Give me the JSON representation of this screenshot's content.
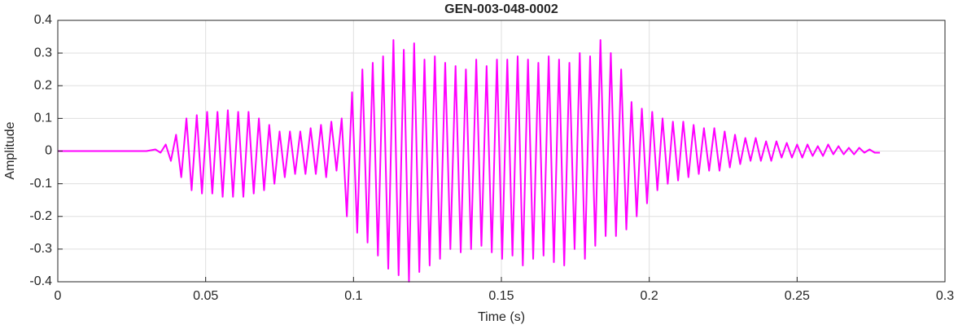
{
  "chart_data": {
    "type": "line",
    "title": "GEN-003-048-0002",
    "xlabel": "Time (s)",
    "ylabel": "Amplitude",
    "color": "#ff00ff",
    "grid": true,
    "xlim": [
      0,
      0.3
    ],
    "xticks": [
      0,
      0.05,
      0.1,
      0.15,
      0.2,
      0.25,
      0.3
    ],
    "ylim": [
      -0.4,
      0.4
    ],
    "yticks": [
      -0.4,
      -0.3,
      -0.2,
      -0.1,
      0,
      0.1,
      0.2,
      0.3,
      0.4
    ],
    "x": [
      0,
      0.03,
      0.033,
      0.03475,
      0.0365,
      0.03825,
      0.04,
      0.04175,
      0.0435,
      0.04525,
      0.047,
      0.04875,
      0.0505,
      0.05225,
      0.054,
      0.05575,
      0.0575,
      0.05925,
      0.061,
      0.06275,
      0.0645,
      0.06625,
      0.068,
      0.06975,
      0.0715,
      0.07325,
      0.075,
      0.07675,
      0.0785,
      0.08025,
      0.082,
      0.08375,
      0.0855,
      0.08725,
      0.089,
      0.09075,
      0.0925,
      0.09425,
      0.096,
      0.09775,
      0.0995,
      0.10125,
      0.103,
      0.10475,
      0.1065,
      0.10825,
      0.11,
      0.11175,
      0.1135,
      0.11525,
      0.117,
      0.11875,
      0.1205,
      0.12225,
      0.124,
      0.12575,
      0.1275,
      0.12925,
      0.131,
      0.13275,
      0.1345,
      0.13625,
      0.138,
      0.13975,
      0.1415,
      0.14325,
      0.145,
      0.14675,
      0.1485,
      0.15025,
      0.152,
      0.15375,
      0.1555,
      0.15725,
      0.159,
      0.16075,
      0.1625,
      0.16425,
      0.166,
      0.16775,
      0.1695,
      0.17125,
      0.173,
      0.17475,
      0.1765,
      0.17825,
      0.18,
      0.18175,
      0.1835,
      0.18525,
      0.187,
      0.18875,
      0.1905,
      0.19225,
      0.194,
      0.19575,
      0.1975,
      0.19925,
      0.201,
      0.20275,
      0.2045,
      0.20625,
      0.208,
      0.20975,
      0.2115,
      0.21325,
      0.215,
      0.21675,
      0.2185,
      0.22025,
      0.222,
      0.22375,
      0.2255,
      0.22725,
      0.229,
      0.23075,
      0.2325,
      0.23425,
      0.236,
      0.23775,
      0.2395,
      0.24125,
      0.243,
      0.24475,
      0.2465,
      0.24825,
      0.25,
      0.25175,
      0.2535,
      0.25525,
      0.257,
      0.25875,
      0.2605,
      0.26225,
      0.264,
      0.26575,
      0.2675,
      0.26925,
      0.271,
      0.27275,
      0.2745,
      0.27625,
      0.278
    ],
    "values": [
      0,
      0,
      0.005,
      -0.005,
      0.02,
      -0.03,
      0.05,
      -0.08,
      0.1,
      -0.12,
      0.11,
      -0.13,
      0.12,
      -0.13,
      0.12,
      -0.14,
      0.125,
      -0.14,
      0.12,
      -0.14,
      0.12,
      -0.13,
      0.1,
      -0.12,
      0.08,
      -0.1,
      0.06,
      -0.08,
      0.06,
      -0.07,
      0.06,
      -0.07,
      0.07,
      -0.07,
      0.08,
      -0.08,
      0.09,
      -0.06,
      0.1,
      -0.2,
      0.18,
      -0.25,
      0.25,
      -0.28,
      0.27,
      -0.32,
      0.29,
      -0.36,
      0.34,
      -0.38,
      0.31,
      -0.4,
      0.33,
      -0.37,
      0.28,
      -0.35,
      0.29,
      -0.33,
      0.27,
      -0.3,
      0.26,
      -0.31,
      0.25,
      -0.3,
      0.28,
      -0.29,
      0.26,
      -0.31,
      0.28,
      -0.33,
      0.28,
      -0.32,
      0.29,
      -0.35,
      0.28,
      -0.33,
      0.27,
      -0.32,
      0.29,
      -0.34,
      0.28,
      -0.35,
      0.27,
      -0.3,
      0.3,
      -0.33,
      0.29,
      -0.29,
      0.34,
      -0.26,
      0.3,
      -0.26,
      0.25,
      -0.24,
      0.15,
      -0.2,
      0.13,
      -0.16,
      0.12,
      -0.12,
      0.1,
      -0.1,
      0.09,
      -0.09,
      0.09,
      -0.08,
      0.08,
      -0.07,
      0.07,
      -0.06,
      0.07,
      -0.06,
      0.06,
      -0.05,
      0.05,
      -0.04,
      0.04,
      -0.03,
      0.04,
      -0.03,
      0.03,
      -0.03,
      0.03,
      -0.02,
      0.025,
      -0.02,
      0.02,
      -0.02,
      0.02,
      -0.015,
      0.015,
      -0.015,
      0.02,
      -0.01,
      0.015,
      -0.01,
      0.01,
      -0.01,
      0.01,
      -0.005,
      0.005,
      -0.005,
      -0.005
    ]
  }
}
